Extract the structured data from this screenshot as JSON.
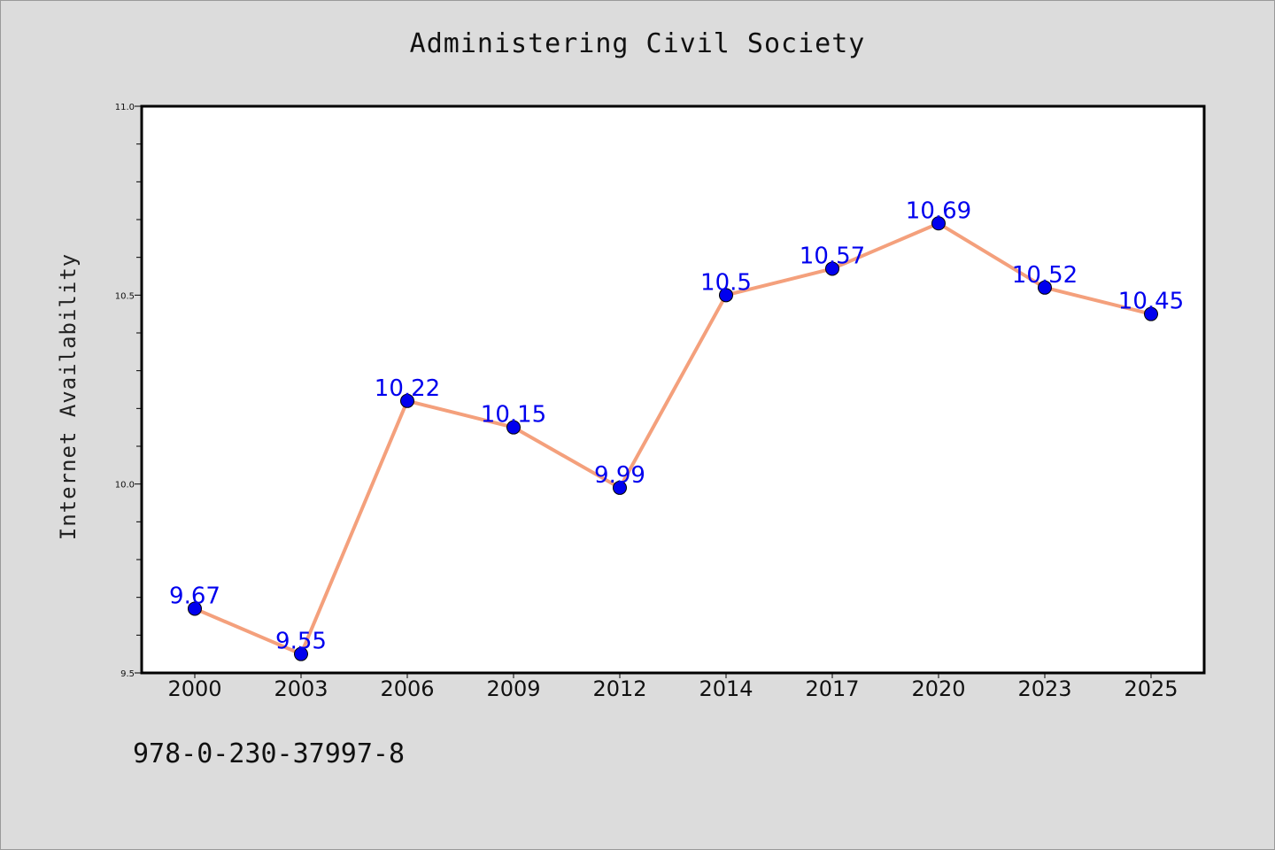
{
  "chart_data": {
    "type": "line",
    "title": "Administering Civil Society",
    "xlabel": "",
    "ylabel": "Internet Availability",
    "categories": [
      "2000",
      "2003",
      "2006",
      "2009",
      "2012",
      "2014",
      "2017",
      "2020",
      "2023",
      "2025"
    ],
    "series": [
      {
        "values": [
          9.67,
          9.55,
          10.22,
          10.15,
          9.99,
          10.5,
          10.57,
          10.69,
          10.52,
          10.45
        ],
        "data_labels": [
          "9.67",
          "9.55",
          "10.22",
          "10.15",
          "9.99",
          "10.5",
          "10.57",
          "10.69",
          "10.52",
          "10.45"
        ],
        "line_color": "#f4a07c",
        "marker_color": "#0000ee"
      }
    ],
    "ylim": [
      9.5,
      11.0
    ],
    "y_ticks": [
      9.5,
      10.0,
      10.5,
      11.0
    ],
    "y_tick_labels": [
      "9.5",
      "10.0",
      "10.5",
      "11.0"
    ],
    "grid": false,
    "legend": "none"
  },
  "footer": {
    "isbn": "978-0-230-37997-8"
  },
  "colors": {
    "background": "#dcdcdc",
    "plot_background": "#ffffff",
    "axis": "#000000"
  }
}
